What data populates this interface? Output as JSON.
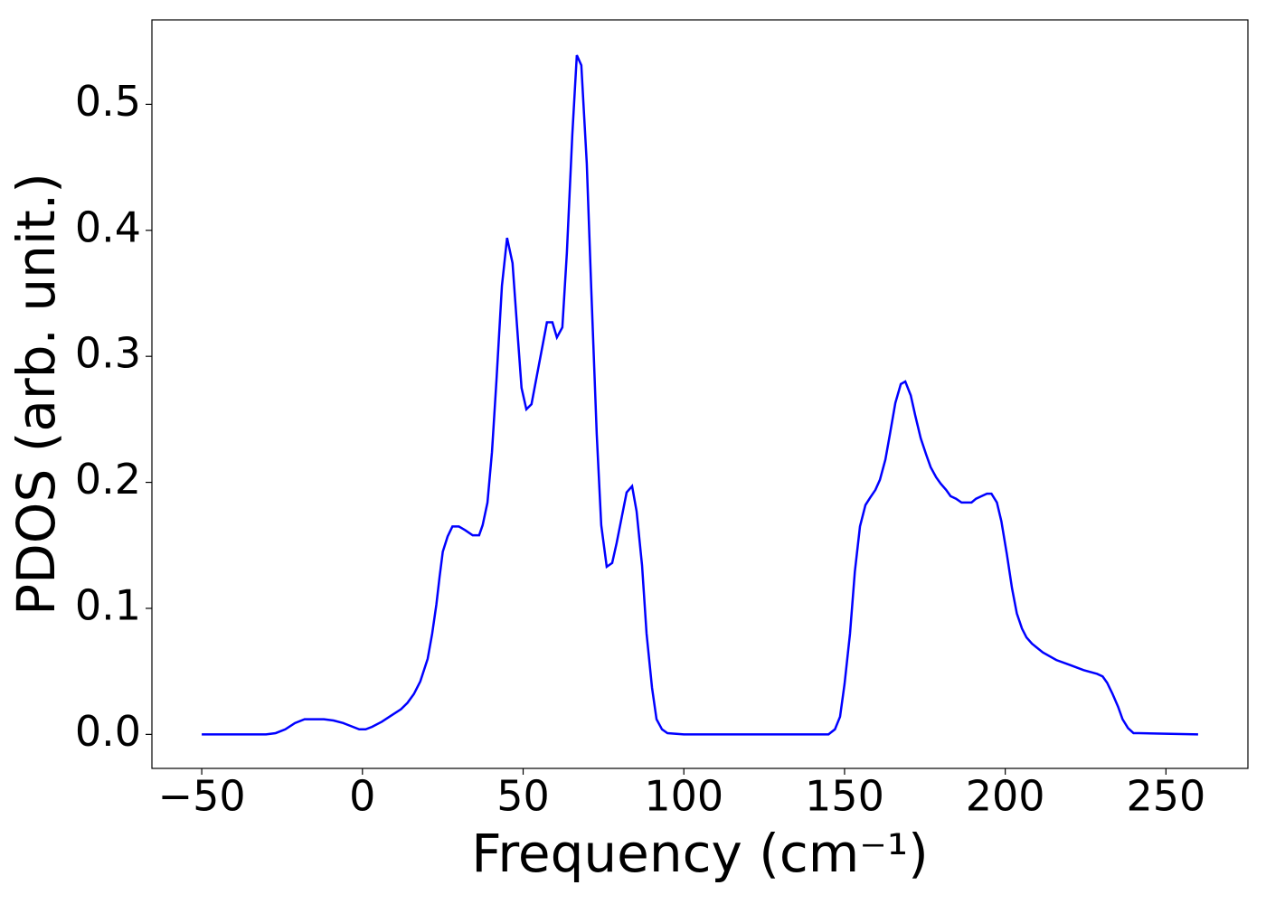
{
  "chart_data": {
    "type": "line",
    "xlabel": "Frequency (cm⁻¹)",
    "ylabel": "PDOS (arb. unit.)",
    "xlim": [
      -65.5,
      275.5
    ],
    "ylim": [
      -0.027,
      0.567
    ],
    "xticks": [
      {
        "value": -50,
        "label": "−50"
      },
      0,
      50,
      100,
      150,
      200,
      250
    ],
    "yticks": [
      {
        "value": 0,
        "label": "0.0"
      },
      0.1,
      0.2,
      0.3,
      0.4,
      0.5
    ],
    "grid": false,
    "x": [
      -50,
      -30,
      -27,
      -24,
      -21,
      -18,
      -15,
      -12,
      -9,
      -6,
      -3,
      -1,
      1,
      3,
      6,
      9,
      12,
      14,
      16,
      18,
      20.3,
      21.7,
      23,
      24,
      25,
      26.5,
      28,
      30,
      32,
      34.3,
      36.3,
      37.4,
      38.9,
      40.3,
      41.7,
      43.4,
      45,
      46.7,
      48.1,
      49.5,
      51,
      52.6,
      54,
      56,
      57.4,
      59.1,
      60.5,
      62.2,
      63.6,
      65.3,
      66.7,
      68.1,
      69.8,
      71.2,
      72.9,
      74.3,
      76,
      77.7,
      79.1,
      80.8,
      82.2,
      83.9,
      85.3,
      87,
      88.4,
      90.1,
      91.5,
      93.2,
      94.9,
      100,
      145,
      147,
      148.6,
      150,
      151.7,
      153.2,
      154.8,
      156.5,
      158,
      159.6,
      161,
      162.7,
      164.1,
      165.8,
      167.5,
      168.9,
      170.6,
      172,
      173.7,
      175.4,
      176.8,
      178.5,
      179.9,
      181.6,
      183,
      184.7,
      186.4,
      187.8,
      189.5,
      190.9,
      192.6,
      194.3,
      195.7,
      197.4,
      198.8,
      200.5,
      202.1,
      203.6,
      205.2,
      206.6,
      208.3,
      211.7,
      215.9,
      220.2,
      224.4,
      228.6,
      230.3,
      231.7,
      233.4,
      235.1,
      236.5,
      238.2,
      239.9,
      241.5,
      260
    ],
    "series": [
      {
        "name": "PDOS",
        "color": "#0000ff",
        "values": [
          0,
          0,
          0.001,
          0.004,
          0.009,
          0.012,
          0.012,
          0.012,
          0.011,
          0.009,
          0.006,
          0.004,
          0.004,
          0.006,
          0.01,
          0.015,
          0.02,
          0.025,
          0.032,
          0.042,
          0.06,
          0.08,
          0.103,
          0.125,
          0.145,
          0.157,
          0.165,
          0.165,
          0.162,
          0.158,
          0.158,
          0.166,
          0.184,
          0.224,
          0.281,
          0.356,
          0.394,
          0.374,
          0.324,
          0.275,
          0.258,
          0.262,
          0.281,
          0.308,
          0.327,
          0.327,
          0.315,
          0.323,
          0.382,
          0.476,
          0.539,
          0.531,
          0.453,
          0.353,
          0.238,
          0.166,
          0.133,
          0.136,
          0.152,
          0.174,
          0.192,
          0.197,
          0.177,
          0.134,
          0.08,
          0.037,
          0.012,
          0.004,
          0.001,
          0,
          0,
          0.004,
          0.014,
          0.04,
          0.08,
          0.129,
          0.165,
          0.182,
          0.188,
          0.194,
          0.202,
          0.218,
          0.238,
          0.263,
          0.278,
          0.28,
          0.269,
          0.253,
          0.235,
          0.222,
          0.212,
          0.204,
          0.199,
          0.194,
          0.189,
          0.187,
          0.184,
          0.184,
          0.184,
          0.187,
          0.189,
          0.191,
          0.191,
          0.184,
          0.169,
          0.143,
          0.116,
          0.096,
          0.084,
          0.077,
          0.072,
          0.065,
          0.059,
          0.055,
          0.051,
          0.048,
          0.046,
          0.041,
          0.032,
          0.022,
          0.012,
          0.005,
          0.001,
          0.001,
          0
        ]
      }
    ]
  }
}
